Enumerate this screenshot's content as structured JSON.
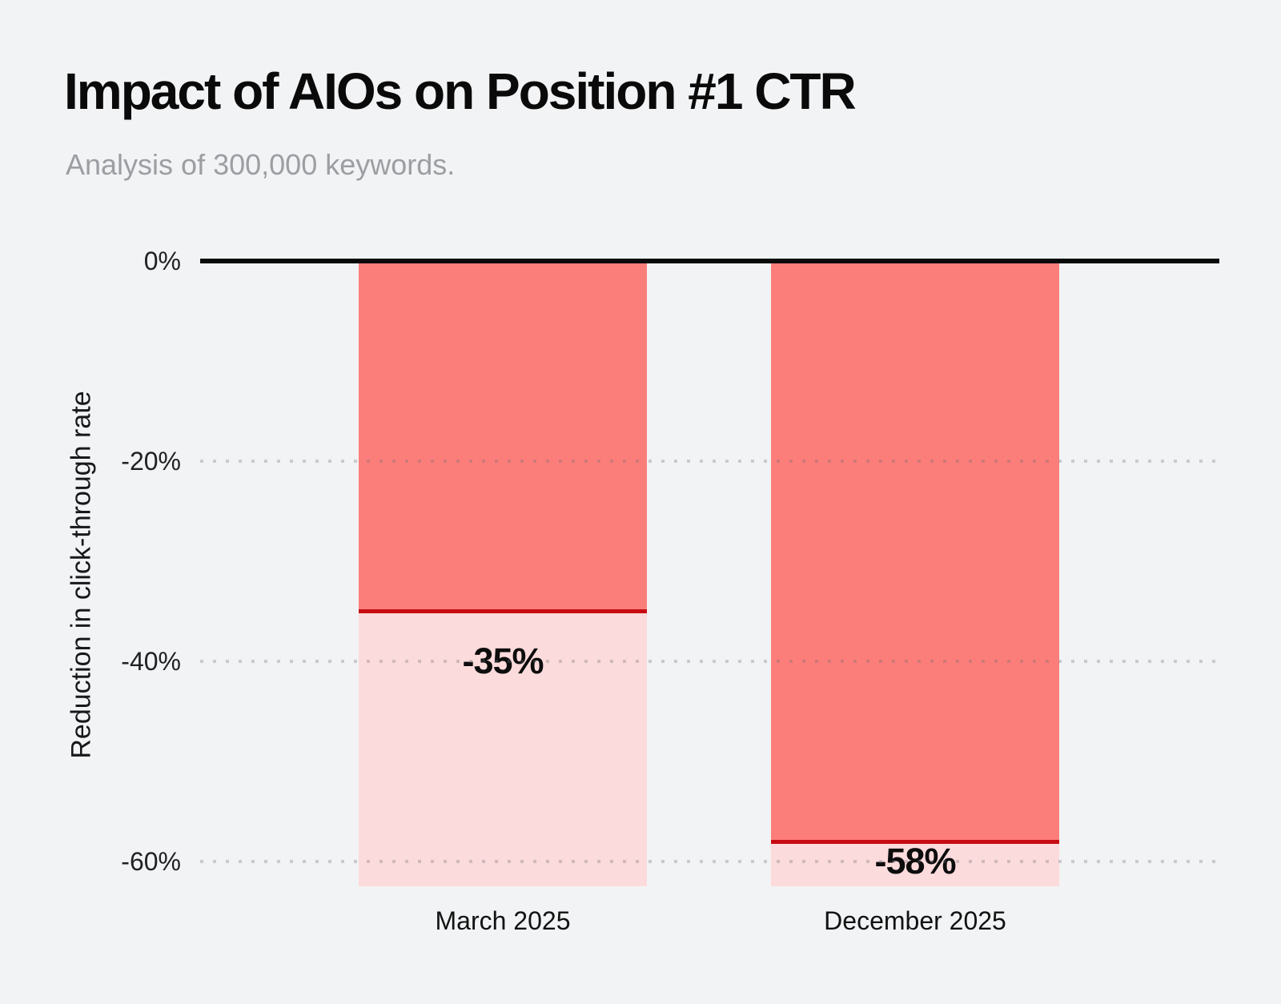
{
  "page": {
    "background_color": "#F2F3F4"
  },
  "chart_data": {
    "type": "bar",
    "title": "Impact of AIOs on Position #1 CTR",
    "subtitle": "Analysis of 300,000 keywords.",
    "ylabel": "Reduction in click-through rate",
    "xlabel": "",
    "categories": [
      "March 2025",
      "December 2025"
    ],
    "values": [
      -35,
      -58
    ],
    "value_labels": [
      "-35%",
      "-58%"
    ],
    "unit": "percent",
    "ylim": [
      -62.5,
      0
    ],
    "yticks": [
      {
        "value": 0,
        "label": "0%"
      },
      {
        "value": -20,
        "label": "-20%"
      },
      {
        "value": -40,
        "label": "-40%"
      },
      {
        "value": -60,
        "label": "-60%"
      }
    ],
    "grid": "horizontal-dotted",
    "legend": "none",
    "bar_orientation": "vertical-downward",
    "colors": {
      "bar_fill": "#FC7E7B",
      "bar_remainder": "#FCDBDC",
      "value_line": "#C70B12",
      "baseline": "#0A0A0A",
      "gridline": "#D4D5D8",
      "title": "#0A0A0A",
      "subtitle": "#9B9EA2",
      "tick_label": "#202124",
      "value_label": "#0D0D0D",
      "background": "#F2F3F4"
    }
  }
}
